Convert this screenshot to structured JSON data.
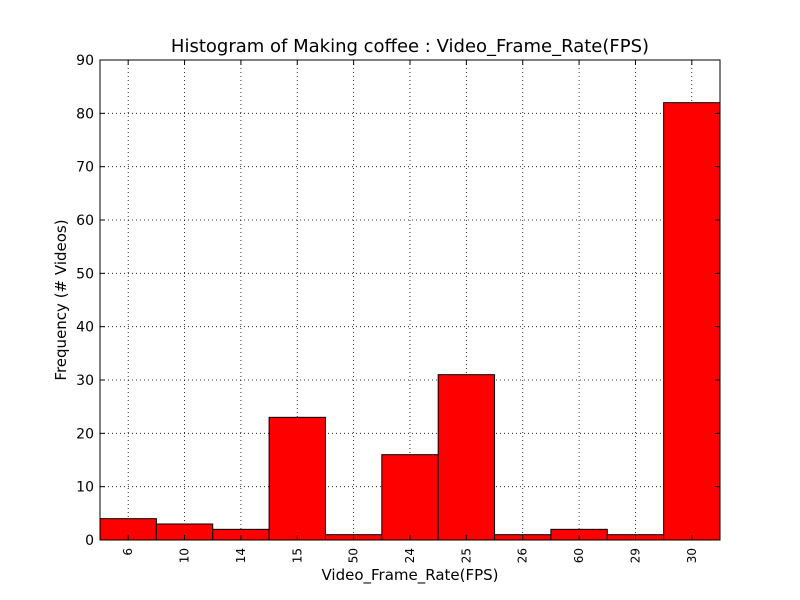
{
  "chart_data": {
    "type": "bar",
    "title": "Histogram of Making coffee : Video_Frame_Rate(FPS)",
    "xlabel": "Video_Frame_Rate(FPS)",
    "ylabel": "Frequency (# Videos)",
    "categories": [
      "6",
      "10",
      "14",
      "15",
      "50",
      "24",
      "25",
      "26",
      "60",
      "29",
      "30"
    ],
    "values": [
      4,
      3,
      2,
      23,
      1,
      16,
      31,
      1,
      2,
      1,
      82
    ],
    "ylim": [
      0,
      90
    ],
    "yticks": [
      0,
      10,
      20,
      30,
      40,
      50,
      60,
      70,
      80,
      90
    ],
    "grid": true,
    "bar_color": "#ff0000"
  }
}
